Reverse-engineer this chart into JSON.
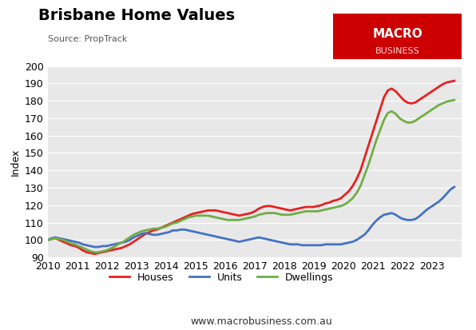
{
  "title": "Brisbane Home Values",
  "source": "Source: PropTrack",
  "ylabel": "Index",
  "xlabel": "",
  "xlim": [
    2010,
    2024
  ],
  "ylim": [
    90,
    200
  ],
  "yticks": [
    90,
    100,
    110,
    120,
    130,
    140,
    150,
    160,
    170,
    180,
    190,
    200
  ],
  "xticks": [
    2010,
    2011,
    2012,
    2013,
    2014,
    2015,
    2016,
    2017,
    2018,
    2019,
    2020,
    2021,
    2022,
    2023
  ],
  "background_color": "#e8e8e8",
  "figure_bg": "#ffffff",
  "macro_box_color": "#cc0000",
  "macro_text": "MACRO\nBUSINESS",
  "website": "www.macrobusiness.com.au",
  "legend_items": [
    "Houses",
    "Units",
    "Dwellings"
  ],
  "series_colors": [
    "#e82020",
    "#4472c4",
    "#70ad47"
  ],
  "line_width": 2.0,
  "houses": [
    100.0,
    100.5,
    101.0,
    100.0,
    99.0,
    98.0,
    97.0,
    96.5,
    95.5,
    94.0,
    93.0,
    92.5,
    92.0,
    92.5,
    93.0,
    93.5,
    94.0,
    94.5,
    95.0,
    95.5,
    96.5,
    97.5,
    99.0,
    100.5,
    102.0,
    103.5,
    104.5,
    105.5,
    106.0,
    107.0,
    108.0,
    109.0,
    110.0,
    111.0,
    112.0,
    113.0,
    114.0,
    115.0,
    115.5,
    116.0,
    116.5,
    117.0,
    117.0,
    117.0,
    116.5,
    116.0,
    115.5,
    115.0,
    114.5,
    114.0,
    114.5,
    115.0,
    115.5,
    116.5,
    118.0,
    119.0,
    119.5,
    119.5,
    119.0,
    118.5,
    118.0,
    117.5,
    117.0,
    117.5,
    118.0,
    118.5,
    119.0,
    119.0,
    119.0,
    119.5,
    120.0,
    121.0,
    121.5,
    122.5,
    123.0,
    124.0,
    126.0,
    128.0,
    131.0,
    135.0,
    140.0,
    147.0,
    154.0,
    161.0,
    168.0,
    175.0,
    182.0,
    186.0,
    187.0,
    185.5,
    183.0,
    180.5,
    179.0,
    178.5,
    179.0,
    180.5,
    182.0,
    183.5,
    185.0,
    186.5,
    188.0,
    189.5,
    190.5,
    191.0,
    191.5
  ],
  "units": [
    100.0,
    101.0,
    101.5,
    101.0,
    100.5,
    100.0,
    99.5,
    99.0,
    98.5,
    97.5,
    97.0,
    96.5,
    96.0,
    96.0,
    96.5,
    96.5,
    97.0,
    97.5,
    98.0,
    98.5,
    99.0,
    100.0,
    101.5,
    102.5,
    103.5,
    104.0,
    103.5,
    103.0,
    103.0,
    103.5,
    104.0,
    104.5,
    105.5,
    105.5,
    106.0,
    106.0,
    105.5,
    105.0,
    104.5,
    104.0,
    103.5,
    103.0,
    102.5,
    102.0,
    101.5,
    101.0,
    100.5,
    100.0,
    99.5,
    99.0,
    99.5,
    100.0,
    100.5,
    101.0,
    101.5,
    101.0,
    100.5,
    100.0,
    99.5,
    99.0,
    98.5,
    98.0,
    97.5,
    97.5,
    97.5,
    97.0,
    97.0,
    97.0,
    97.0,
    97.0,
    97.0,
    97.5,
    97.5,
    97.5,
    97.5,
    97.5,
    98.0,
    98.5,
    99.0,
    100.0,
    101.5,
    103.0,
    105.5,
    108.5,
    111.0,
    113.0,
    114.5,
    115.0,
    115.5,
    114.5,
    113.0,
    112.0,
    111.5,
    111.5,
    112.0,
    113.5,
    115.5,
    117.5,
    119.0,
    120.5,
    122.0,
    124.0,
    126.5,
    129.0,
    130.5
  ],
  "dwellings": [
    100.0,
    100.5,
    101.0,
    100.5,
    100.0,
    99.0,
    98.0,
    97.5,
    96.5,
    95.5,
    94.5,
    93.5,
    93.0,
    93.0,
    93.5,
    94.0,
    95.0,
    96.0,
    97.5,
    98.5,
    100.0,
    101.5,
    103.0,
    104.0,
    105.0,
    105.5,
    106.0,
    106.5,
    106.5,
    107.0,
    107.5,
    108.5,
    109.5,
    110.0,
    111.0,
    112.0,
    113.0,
    113.5,
    114.0,
    114.0,
    114.0,
    114.0,
    113.5,
    113.0,
    112.5,
    112.0,
    111.5,
    111.5,
    111.5,
    111.5,
    112.0,
    112.5,
    113.0,
    113.5,
    114.5,
    115.0,
    115.5,
    115.5,
    115.5,
    115.0,
    114.5,
    114.5,
    114.5,
    115.0,
    115.5,
    116.0,
    116.5,
    116.5,
    116.5,
    116.5,
    117.0,
    117.5,
    118.0,
    118.5,
    119.0,
    119.5,
    120.5,
    122.0,
    124.0,
    127.0,
    131.0,
    137.0,
    143.0,
    150.0,
    157.0,
    163.0,
    169.0,
    173.0,
    174.0,
    172.5,
    170.0,
    168.5,
    167.5,
    167.5,
    168.5,
    170.0,
    171.5,
    173.0,
    174.5,
    176.0,
    177.5,
    178.5,
    179.5,
    180.0,
    180.5
  ],
  "n_points": 105,
  "start_year": 2010.0,
  "end_year": 2023.75
}
